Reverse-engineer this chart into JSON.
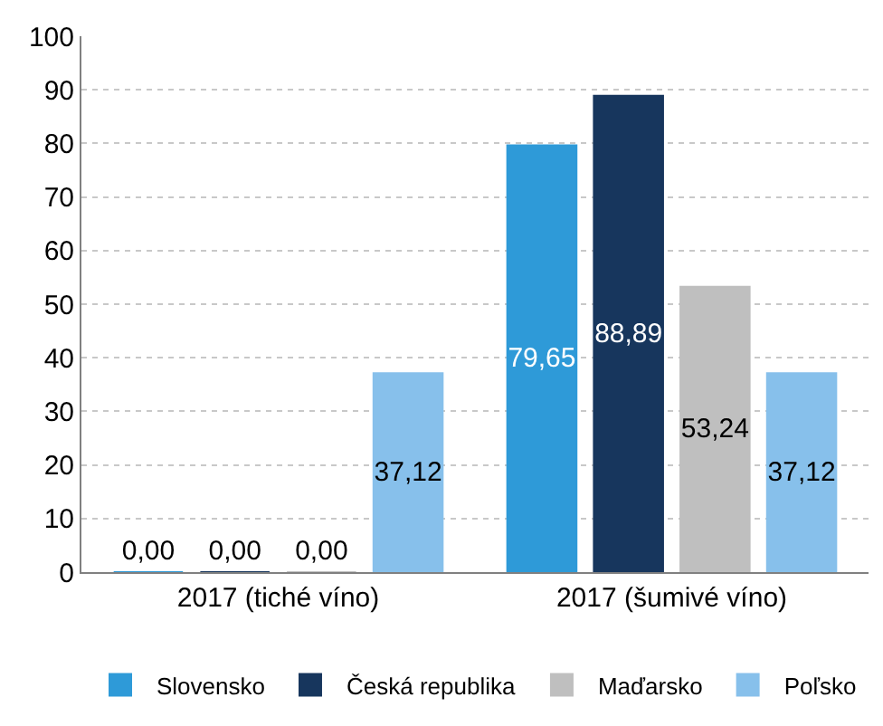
{
  "chart_data": {
    "type": "bar",
    "categories": [
      "2017 (tiché víno)",
      "2017 (šumivé víno)"
    ],
    "series": [
      {
        "name": "Slovensko",
        "color": "#2e9ad8",
        "values": [
          0,
          79.65
        ],
        "value_labels": [
          "0,00",
          "79,65"
        ]
      },
      {
        "name": "Česká republika",
        "color": "#17365d",
        "values": [
          0,
          88.89
        ],
        "value_labels": [
          "0,00",
          "88,89"
        ]
      },
      {
        "name": "Maďarsko",
        "color": "#bfbfbf",
        "values": [
          0,
          53.24
        ],
        "value_labels": [
          "0,00",
          "53,24"
        ]
      },
      {
        "name": "Poľsko",
        "color": "#87c0eb",
        "values": [
          37.12,
          37.12
        ],
        "value_labels": [
          "37,12",
          "37,12"
        ]
      }
    ],
    "ylim": [
      0,
      100
    ],
    "yticks": [
      0,
      10,
      20,
      30,
      40,
      50,
      60,
      70,
      80,
      90,
      100
    ],
    "grid": "y",
    "legend": "bottom"
  }
}
